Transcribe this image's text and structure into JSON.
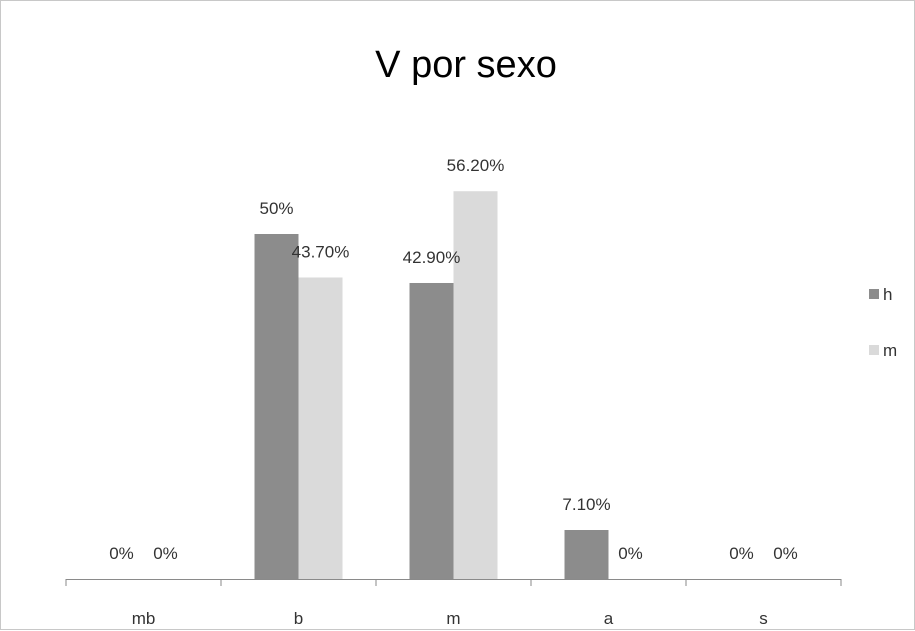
{
  "chart_data": {
    "type": "bar",
    "title": "V por sexo",
    "categories": [
      "mb",
      "b",
      "m",
      "a",
      "s"
    ],
    "series": [
      {
        "name": "h",
        "color": "#8c8c8c",
        "values": [
          0,
          50,
          42.9,
          7.1,
          0
        ],
        "labels": [
          "0%",
          "50%",
          "42.90%",
          "7.10%",
          "0%"
        ]
      },
      {
        "name": "m",
        "color": "#dadada",
        "values": [
          0,
          43.7,
          56.2,
          0,
          0
        ],
        "labels": [
          "0%",
          "43.70%",
          "56.20%",
          "0%",
          "0%"
        ]
      }
    ],
    "ylim": [
      0,
      70
    ],
    "grid": false,
    "legend": "right"
  }
}
